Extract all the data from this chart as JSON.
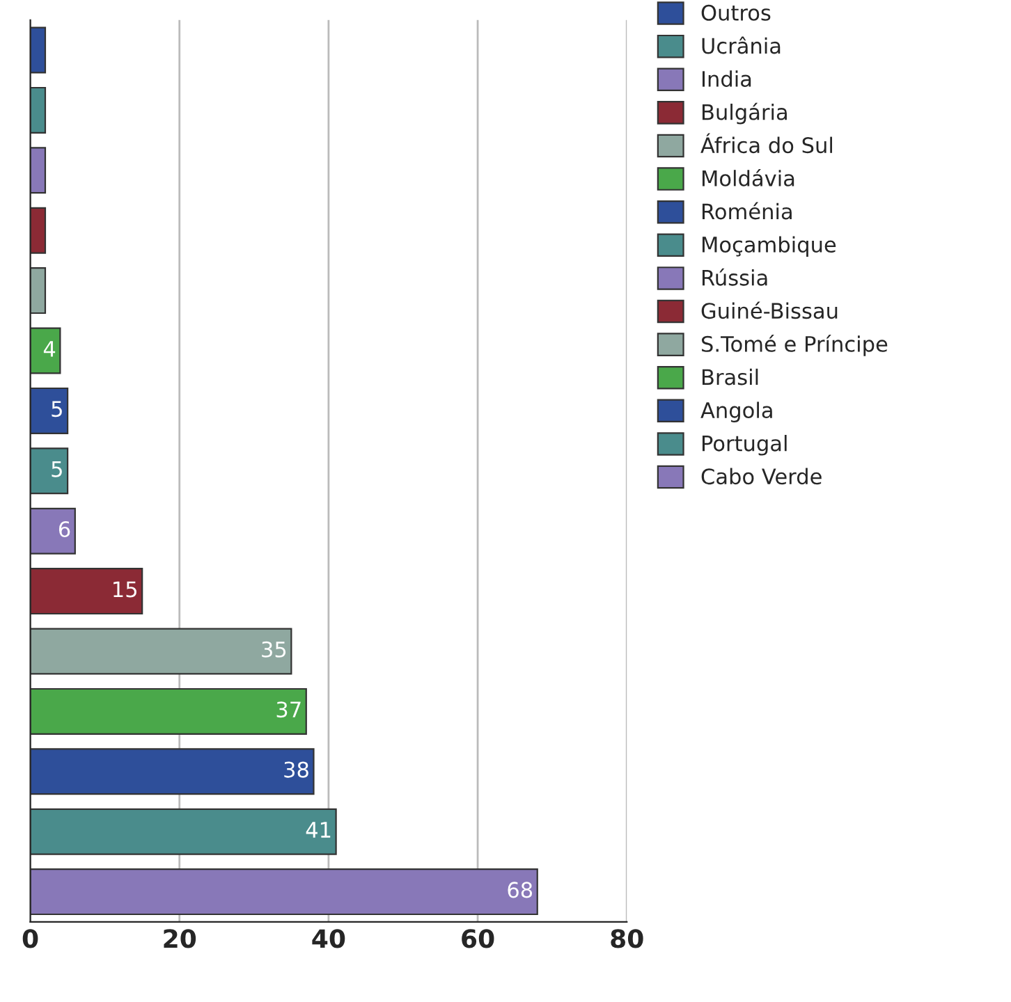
{
  "chart_data": {
    "type": "bar",
    "orientation": "horizontal",
    "categories": [
      null,
      null,
      null,
      null,
      null,
      null,
      null,
      null,
      null,
      null,
      null,
      null,
      null,
      null,
      null
    ],
    "series": [
      {
        "name": "Outros",
        "color": "#2e4f9a",
        "values": [
          2,
          null,
          null,
          null,
          null,
          null,
          null,
          null,
          null,
          null,
          null,
          null,
          null,
          null,
          null
        ]
      },
      {
        "name": "Ucrânia",
        "color": "#4a8c8c",
        "values": [
          null,
          2,
          null,
          null,
          null,
          null,
          null,
          null,
          null,
          null,
          null,
          null,
          null,
          null,
          null
        ]
      },
      {
        "name": "India",
        "color": "#8878b8",
        "values": [
          null,
          null,
          2,
          null,
          null,
          null,
          null,
          null,
          null,
          null,
          null,
          null,
          null,
          null,
          null
        ]
      },
      {
        "name": "Bulgária",
        "color": "#8b2a35",
        "values": [
          null,
          null,
          null,
          2,
          null,
          null,
          null,
          null,
          null,
          null,
          null,
          null,
          null,
          null,
          null
        ]
      },
      {
        "name": "África do Sul",
        "color": "#8fa8a0",
        "values": [
          null,
          null,
          null,
          null,
          2,
          null,
          null,
          null,
          null,
          null,
          null,
          null,
          null,
          null,
          null
        ]
      },
      {
        "name": "Moldávia",
        "color": "#4aa84a",
        "values": [
          null,
          null,
          null,
          null,
          null,
          4,
          null,
          null,
          null,
          null,
          null,
          null,
          null,
          null,
          null
        ],
        "value_labels": [
          null,
          null,
          null,
          null,
          null,
          "4",
          null,
          null,
          null,
          null,
          null,
          null,
          null,
          null,
          null
        ]
      },
      {
        "name": "Roménia",
        "color": "#2e4f9a",
        "values": [
          null,
          null,
          null,
          null,
          null,
          null,
          5,
          null,
          null,
          null,
          null,
          null,
          null,
          null,
          null
        ],
        "value_labels": [
          null,
          null,
          null,
          null,
          null,
          null,
          "5",
          null,
          null,
          null,
          null,
          null,
          null,
          null,
          null
        ]
      },
      {
        "name": "Moçambique",
        "color": "#4a8c8c",
        "values": [
          null,
          null,
          null,
          null,
          null,
          null,
          null,
          5,
          null,
          null,
          null,
          null,
          null,
          null,
          null
        ],
        "value_labels": [
          null,
          null,
          null,
          null,
          null,
          null,
          null,
          "5",
          null,
          null,
          null,
          null,
          null,
          null,
          null
        ]
      },
      {
        "name": "Rússia",
        "color": "#8878b8",
        "values": [
          null,
          null,
          null,
          null,
          null,
          null,
          null,
          null,
          6,
          null,
          null,
          null,
          null,
          null,
          null
        ],
        "value_labels": [
          null,
          null,
          null,
          null,
          null,
          null,
          null,
          null,
          "6",
          null,
          null,
          null,
          null,
          null,
          null
        ]
      },
      {
        "name": "Guiné-Bissau",
        "color": "#8b2a35",
        "values": [
          null,
          null,
          null,
          null,
          null,
          null,
          null,
          null,
          null,
          15,
          null,
          null,
          null,
          null,
          null
        ],
        "value_labels": [
          null,
          null,
          null,
          null,
          null,
          null,
          null,
          null,
          null,
          "15",
          null,
          null,
          null,
          null,
          null
        ]
      },
      {
        "name": "S.Tomé e Príncipe",
        "color": "#8fa8a0",
        "values": [
          null,
          null,
          null,
          null,
          null,
          null,
          null,
          null,
          null,
          null,
          35,
          null,
          null,
          null,
          null
        ],
        "value_labels": [
          null,
          null,
          null,
          null,
          null,
          null,
          null,
          null,
          null,
          null,
          "35",
          null,
          null,
          null,
          null
        ]
      },
      {
        "name": "Brasil",
        "color": "#4aa84a",
        "values": [
          null,
          null,
          null,
          null,
          null,
          null,
          null,
          null,
          null,
          null,
          null,
          37,
          null,
          null,
          null
        ],
        "value_labels": [
          null,
          null,
          null,
          null,
          null,
          null,
          null,
          null,
          null,
          null,
          null,
          "37",
          null,
          null,
          null
        ]
      },
      {
        "name": "Angola",
        "color": "#2e4f9a",
        "values": [
          null,
          null,
          null,
          null,
          null,
          null,
          null,
          null,
          null,
          null,
          null,
          null,
          38,
          null,
          null
        ],
        "value_labels": [
          null,
          null,
          null,
          null,
          null,
          null,
          null,
          null,
          null,
          null,
          null,
          null,
          "38",
          null,
          null
        ]
      },
      {
        "name": "Portugal",
        "color": "#4a8c8c",
        "values": [
          null,
          null,
          null,
          null,
          null,
          null,
          null,
          null,
          null,
          null,
          null,
          null,
          null,
          41,
          null
        ],
        "value_labels": [
          null,
          null,
          null,
          null,
          null,
          null,
          null,
          null,
          null,
          null,
          null,
          null,
          null,
          "41",
          null
        ]
      },
      {
        "name": "Cabo Verde",
        "color": "#8878b8",
        "values": [
          null,
          null,
          null,
          null,
          null,
          null,
          null,
          null,
          null,
          null,
          null,
          null,
          null,
          null,
          68
        ],
        "value_labels": [
          null,
          null,
          null,
          null,
          null,
          null,
          null,
          null,
          null,
          null,
          null,
          null,
          null,
          null,
          "68"
        ]
      }
    ],
    "xlim": [
      0,
      80
    ],
    "xticks": [
      0,
      20,
      40,
      60,
      80
    ],
    "grid": "x",
    "legend": "right",
    "tick_labels": "x"
  }
}
